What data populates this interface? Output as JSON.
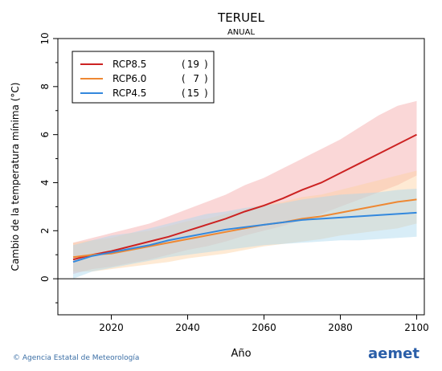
{
  "chart_data": {
    "type": "line",
    "title": "TERUEL",
    "subtitle": "ANUAL",
    "xlabel": "Año",
    "ylabel": "Cambio de la temperatura mínima (°C)",
    "xlim": [
      2006,
      2102
    ],
    "ylim": [
      -1.5,
      10
    ],
    "x_ticks": [
      2020,
      2040,
      2060,
      2080,
      2100
    ],
    "y_ticks": [
      0,
      2,
      4,
      6,
      8,
      10
    ],
    "grid": false,
    "legend_position": "top-left",
    "series": [
      {
        "name": "RCP8.5",
        "count": "19",
        "color": "#cc2222",
        "band_color": "#f4a6a6",
        "x": [
          2010,
          2015,
          2020,
          2025,
          2030,
          2035,
          2040,
          2045,
          2050,
          2055,
          2060,
          2065,
          2070,
          2075,
          2080,
          2085,
          2090,
          2095,
          2100
        ],
        "mean": [
          0.8,
          1.0,
          1.15,
          1.35,
          1.55,
          1.75,
          2.0,
          2.25,
          2.5,
          2.8,
          3.05,
          3.35,
          3.7,
          4.0,
          4.4,
          4.8,
          5.2,
          5.6,
          6.0
        ],
        "lower": [
          0.2,
          0.4,
          0.5,
          0.65,
          0.8,
          1.0,
          1.2,
          1.35,
          1.55,
          1.8,
          2.0,
          2.2,
          2.45,
          2.7,
          3.0,
          3.3,
          3.6,
          3.9,
          4.3
        ],
        "upper": [
          1.5,
          1.7,
          1.9,
          2.1,
          2.3,
          2.6,
          2.9,
          3.2,
          3.5,
          3.9,
          4.2,
          4.6,
          5.0,
          5.4,
          5.8,
          6.3,
          6.8,
          7.2,
          7.4
        ]
      },
      {
        "name": "RCP6.0",
        "count": "7",
        "color": "#ee8833",
        "band_color": "#fcd0a0",
        "x": [
          2010,
          2015,
          2020,
          2025,
          2030,
          2035,
          2040,
          2045,
          2050,
          2055,
          2060,
          2065,
          2070,
          2075,
          2080,
          2085,
          2090,
          2095,
          2100
        ],
        "mean": [
          0.9,
          1.0,
          1.05,
          1.2,
          1.35,
          1.5,
          1.65,
          1.8,
          1.95,
          2.1,
          2.25,
          2.35,
          2.5,
          2.6,
          2.75,
          2.9,
          3.05,
          3.2,
          3.3
        ],
        "lower": [
          0.3,
          0.3,
          0.4,
          0.5,
          0.6,
          0.7,
          0.85,
          0.95,
          1.05,
          1.2,
          1.35,
          1.45,
          1.55,
          1.65,
          1.8,
          1.9,
          2.0,
          2.1,
          2.3
        ],
        "upper": [
          1.5,
          1.6,
          1.7,
          1.9,
          2.0,
          2.2,
          2.4,
          2.5,
          2.7,
          2.9,
          3.1,
          3.2,
          3.4,
          3.5,
          3.7,
          3.9,
          4.1,
          4.3,
          4.5
        ]
      },
      {
        "name": "RCP4.5",
        "count": "15",
        "color": "#3388dd",
        "band_color": "#a8d8ee",
        "x": [
          2010,
          2015,
          2020,
          2025,
          2030,
          2035,
          2040,
          2045,
          2050,
          2055,
          2060,
          2065,
          2070,
          2075,
          2080,
          2085,
          2090,
          2095,
          2100
        ],
        "mean": [
          0.7,
          0.95,
          1.1,
          1.25,
          1.4,
          1.6,
          1.75,
          1.9,
          2.05,
          2.15,
          2.25,
          2.35,
          2.45,
          2.5,
          2.55,
          2.6,
          2.65,
          2.7,
          2.75
        ],
        "lower": [
          0.0,
          0.3,
          0.45,
          0.6,
          0.75,
          0.9,
          1.0,
          1.1,
          1.2,
          1.3,
          1.4,
          1.45,
          1.5,
          1.55,
          1.6,
          1.6,
          1.65,
          1.7,
          1.75
        ],
        "upper": [
          1.4,
          1.6,
          1.8,
          1.9,
          2.1,
          2.3,
          2.5,
          2.7,
          2.8,
          2.95,
          3.05,
          3.15,
          3.3,
          3.4,
          3.5,
          3.55,
          3.6,
          3.7,
          3.75
        ]
      }
    ]
  },
  "footer": {
    "credit": "© Agencia Estatal de Meteorología",
    "logo_text": "aemet"
  }
}
